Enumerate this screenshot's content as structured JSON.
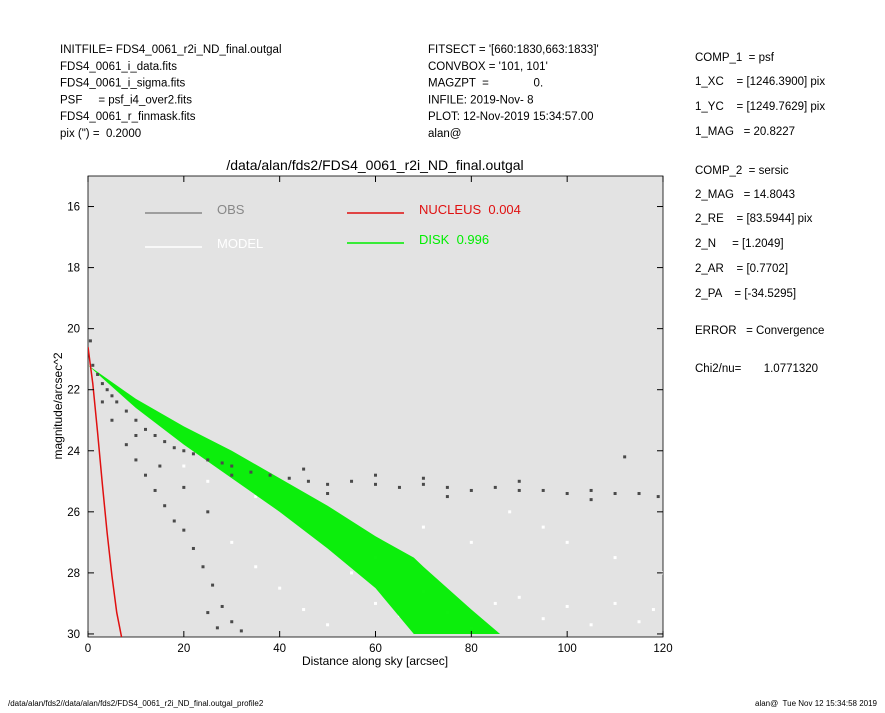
{
  "header": {
    "left": [
      "INITFILE= FDS4_0061_r2i_ND_final.outgal",
      "FDS4_0061_i_data.fits",
      "FDS4_0061_i_sigma.fits",
      "PSF     = psf_i4_over2.fits",
      "FDS4_0061_r_finmask.fits",
      "pix (\") =  0.2000"
    ],
    "middle": [
      "FITSECT = '[660:1830,663:1833]'",
      "CONVBOX = '101, 101'",
      "MAGZPT  =              0.",
      "INFILE: 2019-Nov- 8",
      "PLOT: 12-Nov-2019 15:34:57.00",
      "alan@"
    ],
    "right": [
      "COMP_1  = psf",
      "1_XC    = [1246.3900] pix",
      "1_YC    = [1249.7629] pix",
      "1_MAG   = 20.8227",
      "COMP_2  = sersic",
      "2_MAG   = 14.8043",
      "2_RE    = [83.5944] pix",
      "2_N     = [1.2049]",
      "2_AR    = [0.7702]",
      "2_PA    = [-34.5295]",
      "ERROR   = Convergence",
      "Chi2/nu=       1.0771320"
    ]
  },
  "chart_data": {
    "type": "scatter",
    "title": "/data/alan/fds2/FDS4_0061_r2i_ND_final.outgal",
    "x_label": "Distance along sky [arcsec]",
    "y_label": "magnitude/arcsec^2",
    "xlim": [
      0,
      120
    ],
    "xticks": [
      0,
      20,
      40,
      60,
      80,
      100,
      120
    ],
    "ylim": [
      15,
      30.1
    ],
    "yticks": [
      16,
      18,
      20,
      22,
      24,
      26,
      28,
      30
    ],
    "y_inverted": true,
    "background": "#e3e3e3",
    "series": [
      {
        "name": "OBS",
        "kind": "points",
        "color": "#4a4a4a",
        "legend_color": "#888888",
        "x": [
          0.5,
          1,
          2,
          3,
          4,
          5,
          6,
          8,
          10,
          12,
          14,
          16,
          18,
          20,
          22,
          25,
          28,
          30,
          34,
          38,
          42,
          46,
          50,
          55,
          60,
          65,
          70,
          75,
          80,
          85,
          90,
          95,
          100,
          105,
          110,
          115,
          119,
          112,
          30,
          45,
          60,
          75,
          90,
          105,
          70,
          50,
          3,
          5,
          8,
          10,
          12,
          14,
          16,
          18,
          20,
          22,
          24,
          26,
          28,
          30,
          27,
          25,
          32,
          15,
          20,
          25,
          10
        ],
        "values": [
          20.4,
          21.2,
          21.5,
          21.8,
          22.0,
          22.2,
          22.4,
          22.7,
          23.0,
          23.3,
          23.5,
          23.7,
          23.9,
          24.0,
          24.1,
          24.3,
          24.4,
          24.5,
          24.7,
          24.8,
          24.9,
          25.0,
          25.1,
          25.0,
          25.1,
          25.2,
          25.1,
          25.2,
          25.3,
          25.2,
          25.3,
          25.3,
          25.4,
          25.3,
          25.4,
          25.4,
          25.5,
          24.2,
          24.8,
          24.6,
          24.8,
          25.5,
          25.0,
          25.6,
          24.9,
          25.4,
          22.4,
          23.0,
          23.8,
          24.3,
          24.8,
          25.3,
          25.8,
          26.3,
          26.6,
          27.2,
          27.8,
          28.4,
          29.1,
          29.6,
          29.8,
          29.3,
          29.9,
          24.5,
          25.2,
          26.0,
          23.5
        ]
      },
      {
        "name": "MODEL",
        "kind": "points",
        "color": "#ffffff",
        "legend_color": "#ffffff",
        "x": [
          30,
          35,
          40,
          45,
          50,
          55,
          60,
          65,
          70,
          75,
          80,
          85,
          90,
          95,
          100,
          105,
          110,
          115,
          118,
          88,
          95,
          100,
          110,
          120,
          70,
          80,
          45,
          60,
          35,
          25,
          20
        ],
        "values": [
          27.0,
          27.8,
          28.5,
          29.2,
          29.7,
          28.0,
          29.0,
          29.4,
          28.6,
          29.3,
          29.8,
          29.0,
          28.8,
          29.5,
          29.1,
          29.7,
          29.0,
          29.6,
          29.2,
          26.0,
          26.5,
          27.0,
          27.5,
          28.0,
          26.5,
          27.0,
          26.3,
          27.5,
          25.5,
          25.0,
          24.5
        ]
      },
      {
        "name": "NUCLEUS  0.004",
        "kind": "line",
        "color": "#e01010",
        "x": [
          0,
          0.5,
          1,
          2,
          3,
          4,
          5,
          6,
          7
        ],
        "values": [
          20.6,
          21.2,
          21.8,
          23.4,
          25.1,
          26.7,
          28.1,
          29.3,
          30.1
        ]
      },
      {
        "name": "DISK  0.996",
        "kind": "band",
        "color": "#00ee00",
        "x": [
          0,
          10,
          20,
          30,
          40,
          50,
          60,
          68,
          70,
          80,
          86
        ],
        "values": [
          21.2,
          22.3,
          23.2,
          24.0,
          24.9,
          25.8,
          26.8,
          27.5,
          27.8,
          29.2,
          30.0
        ],
        "values_faint": [
          21.2,
          22.6,
          23.8,
          24.9,
          26.0,
          27.2,
          28.5,
          30.0,
          null,
          null,
          null
        ]
      }
    ]
  },
  "footer": {
    "left": "/data/alan/fds2//data/alan/fds2/FDS4_0061_r2i_ND_final.outgal_profile2",
    "right": "alan@  Tue Nov 12 15:34:58 2019"
  }
}
